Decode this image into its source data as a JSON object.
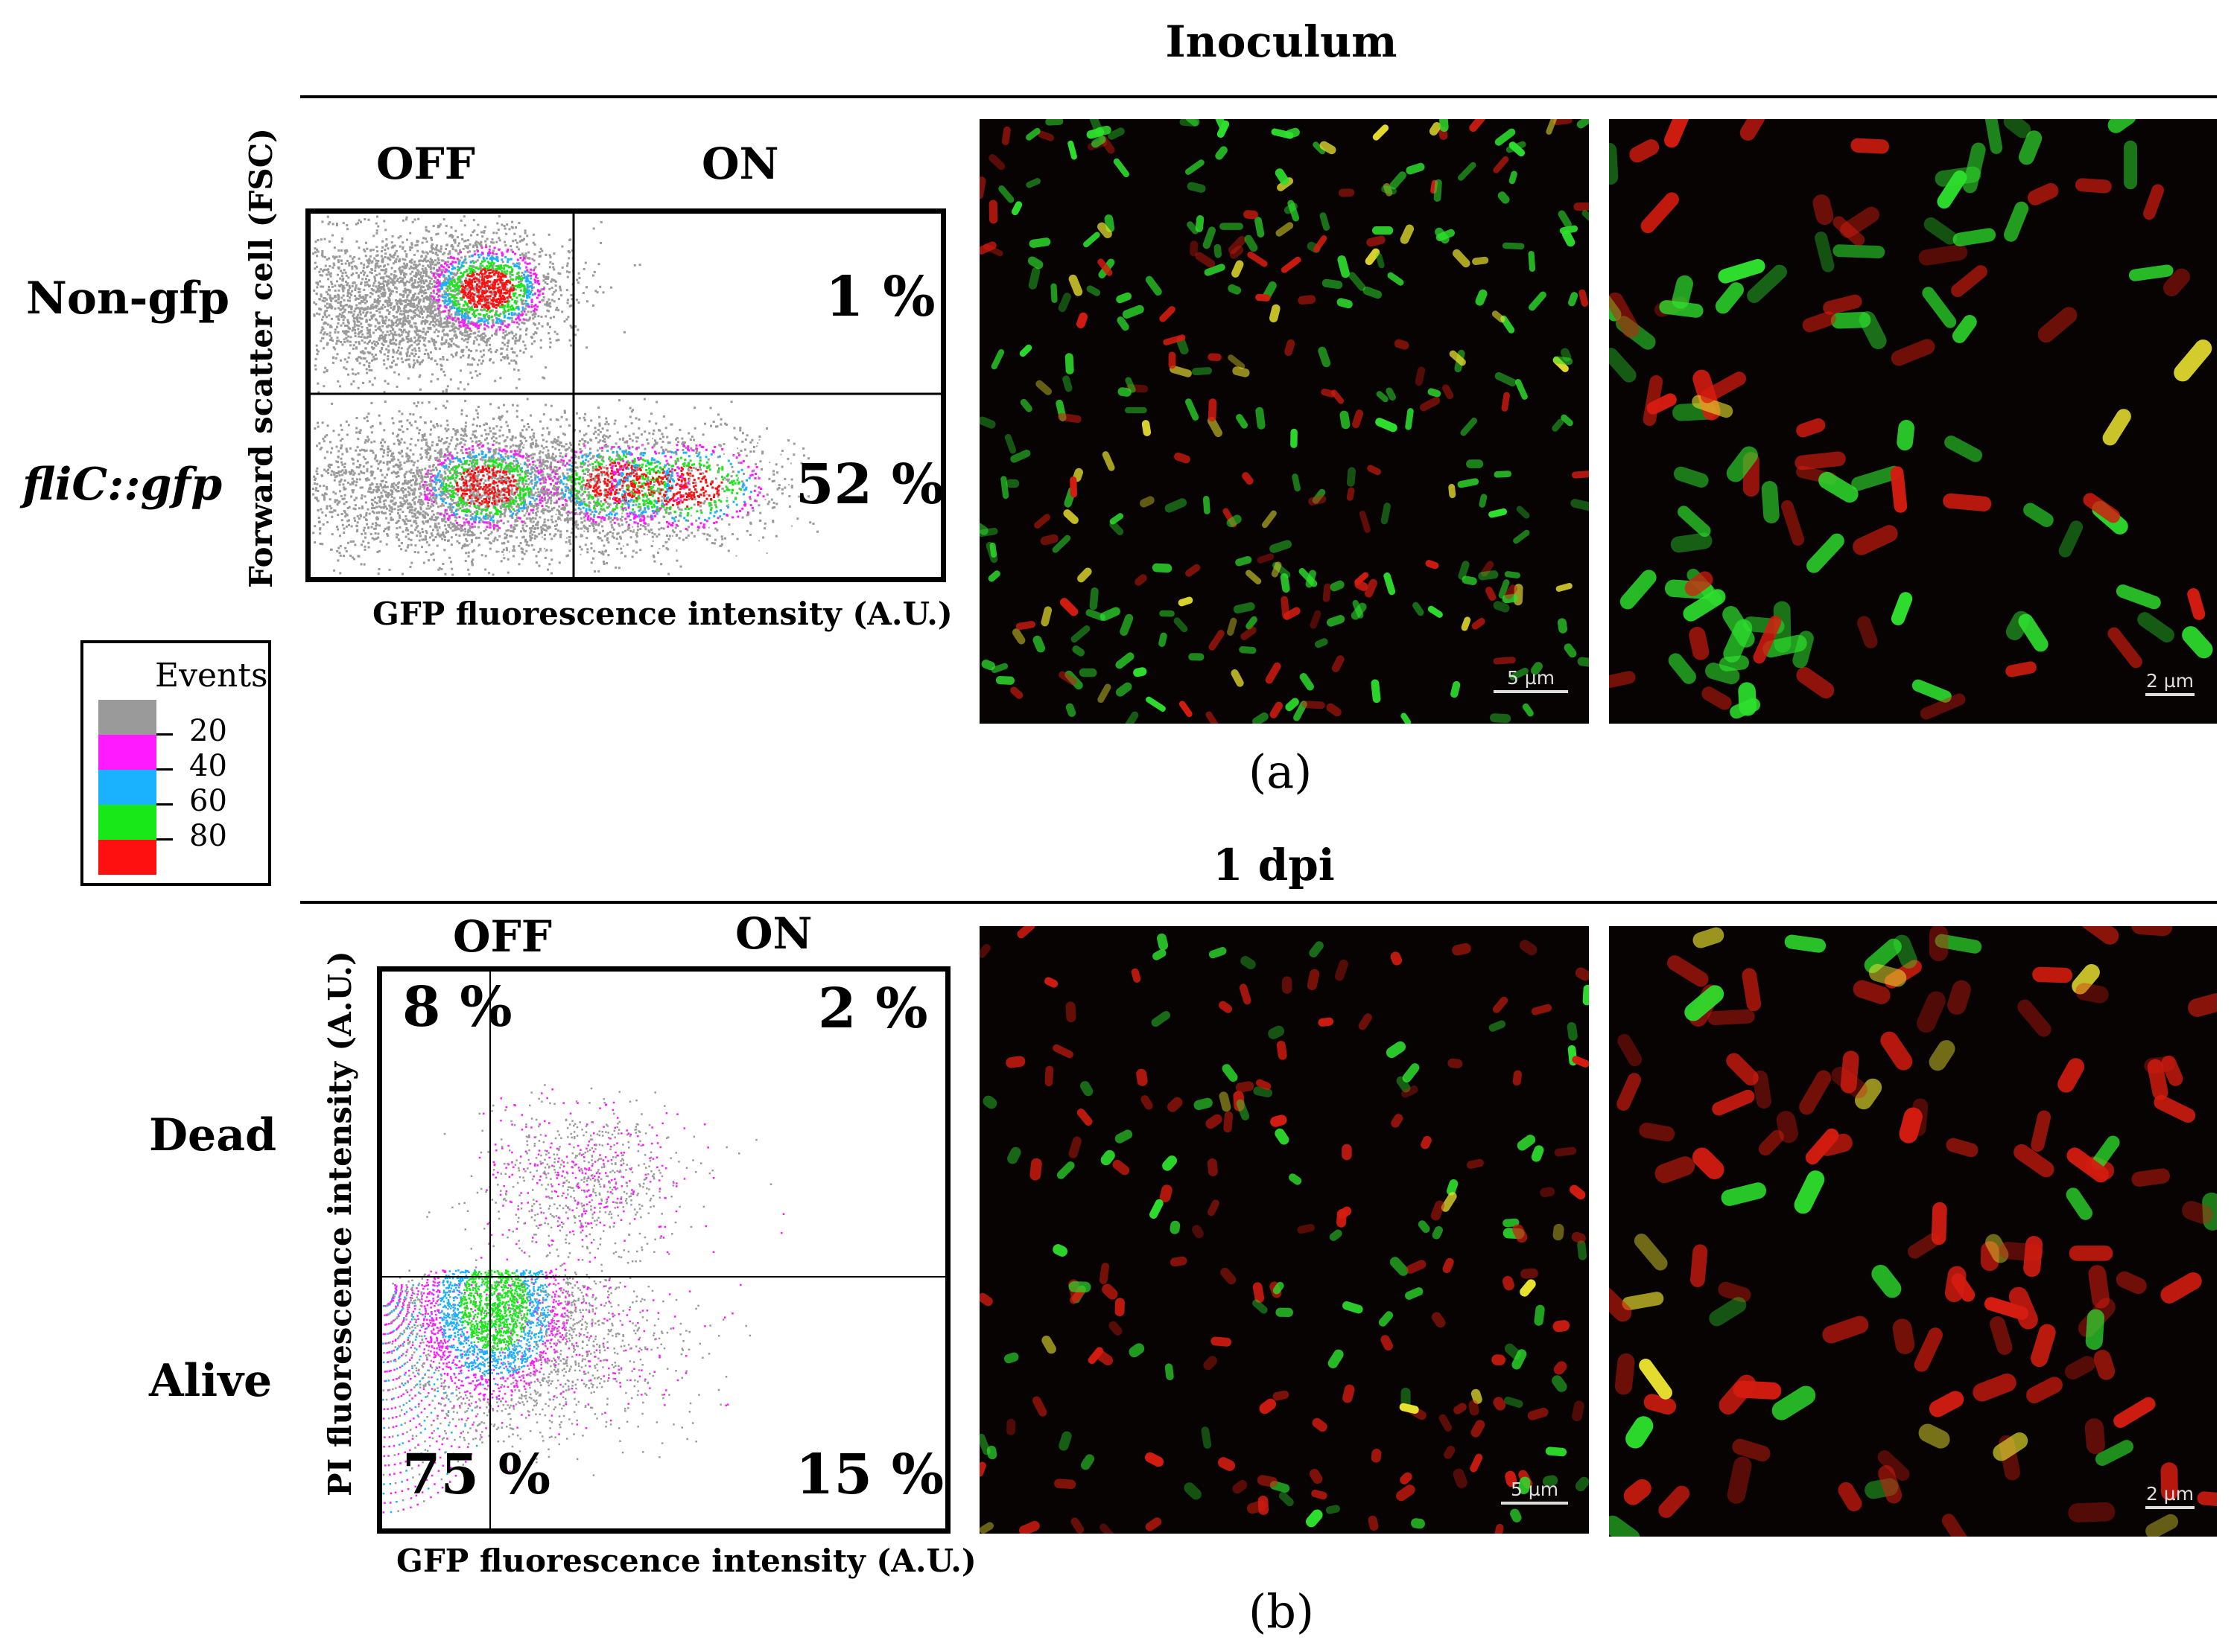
{
  "top": {
    "heading": "Inoculum",
    "panel_letter": "(a)",
    "off_label": "OFF",
    "on_label": "ON",
    "row1_label": "Non-gfp",
    "row2_label": "fliC::gfp",
    "row1_percent": "1 %",
    "row2_percent": "52 %",
    "y_axis_label": "Forward scatter cell (FSC)",
    "x_axis_label": "GFP fluorescence intensity (A.U.)",
    "scale_left": "5 µm",
    "scale_right": "2 µm"
  },
  "bottom": {
    "heading": "1 dpi",
    "panel_letter": "(b)",
    "off_label": "OFF",
    "on_label": "ON",
    "dead_label": "Dead",
    "alive_label": "Alive",
    "q_off_dead": "8 %",
    "q_on_dead": "2 %",
    "q_off_alive": "75 %",
    "q_on_alive": "15 %",
    "y_axis_label": "PI fluorescence intensity (A.U.)",
    "x_axis_label": "GFP fluorescence intensity (A.U.)",
    "scale_left": "5 µm",
    "scale_right": "2 µm"
  },
  "legend": {
    "title": "Events",
    "levels": [
      {
        "label": "20",
        "color": "#9a9a9a"
      },
      {
        "label": "40",
        "color": "#ff1aff"
      },
      {
        "label": "60",
        "color": "#1ab2ff"
      },
      {
        "label": "80",
        "color": "#18e818"
      },
      {
        "label": "",
        "color": "#ff1010"
      }
    ]
  },
  "colors": {
    "density_gray": "#9a9a9a",
    "density_magenta": "#ff1aff",
    "density_cyan": "#1ab2ff",
    "density_green": "#18e818",
    "density_red": "#ff1010",
    "cell_green": "#2ee02e",
    "cell_red": "#d41c10",
    "cell_yellow": "#e8e030",
    "micro_bg": "#070302"
  }
}
